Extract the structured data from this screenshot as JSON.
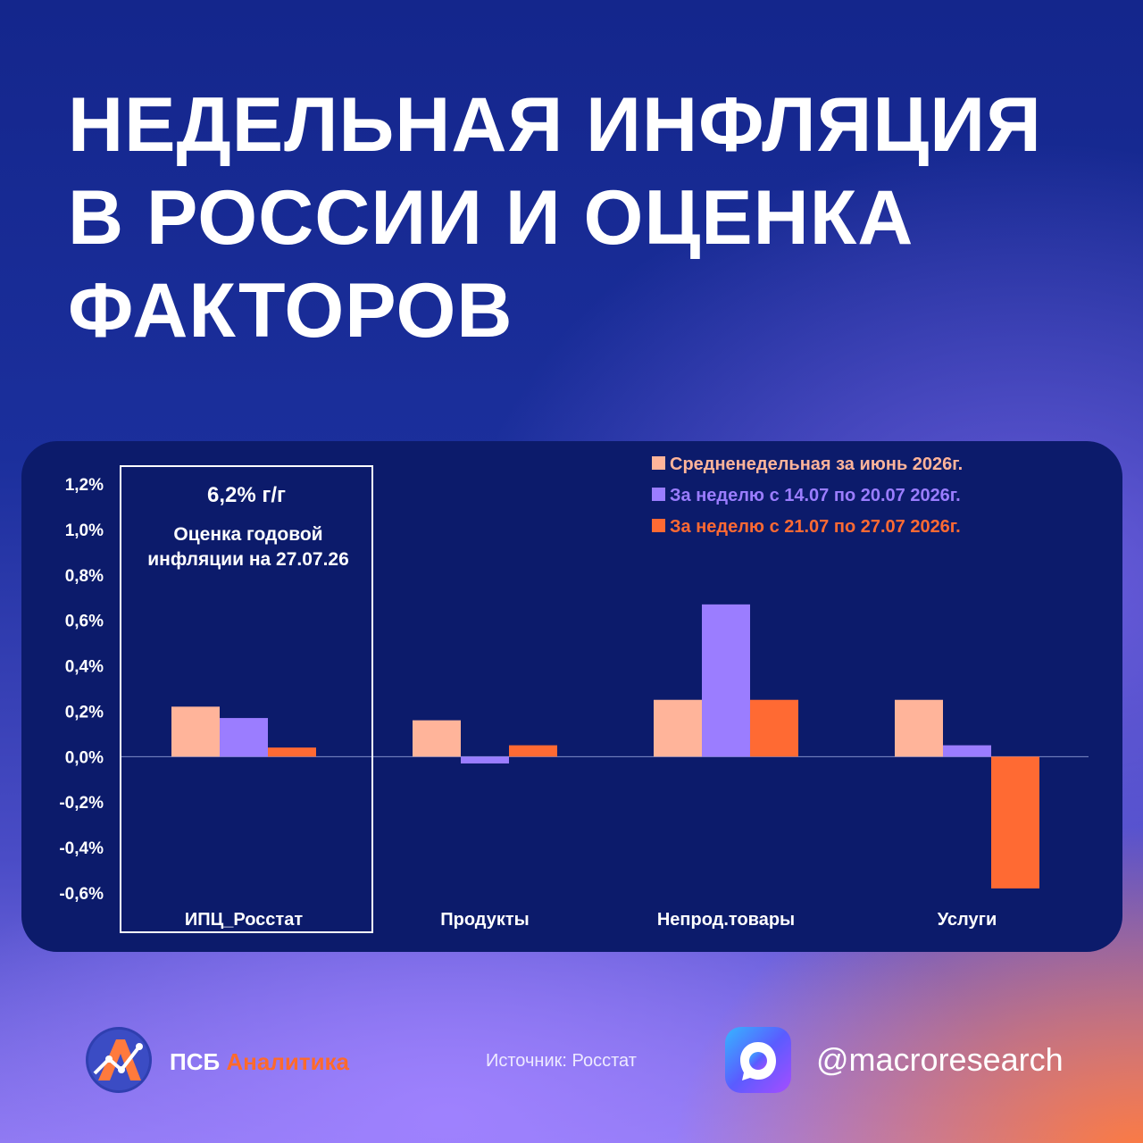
{
  "title": {
    "line1": "НЕДЕЛЬНАЯ ИНФЛЯЦИЯ",
    "line2": "В РОССИИ И ОЦЕНКА",
    "line3": "ФАКТОРОВ"
  },
  "annotation": {
    "value": "6,2% г/г",
    "text": "Оценка годовой инфляции на 27.07.26"
  },
  "footer": {
    "brand_part1": "ПСБ",
    "brand_part2": "Аналитика",
    "source": "Источник:  Росстат",
    "handle": "@macroresearch"
  },
  "colors": {
    "series1": "#ffb49a",
    "series2": "#9b7dff",
    "series3": "#ff6a33",
    "panel": "#0c1b6b"
  },
  "chart_data": {
    "type": "bar",
    "categories": [
      "ИПЦ_Росстат",
      "Продукты",
      "Непрод.товары",
      "Услуги"
    ],
    "series": [
      {
        "name": "Средненедельная за июнь 2026г.",
        "values": [
          0.22,
          0.16,
          0.25,
          0.25
        ]
      },
      {
        "name": "За неделю с 14.07 по 20.07 2026г.",
        "values": [
          0.17,
          -0.03,
          0.67,
          0.05
        ]
      },
      {
        "name": "За неделю с 21.07 по 27.07 2026г.",
        "values": [
          0.04,
          0.05,
          0.25,
          -0.58
        ]
      }
    ],
    "yticks": [
      "1,2%",
      "1,0%",
      "0,8%",
      "0,6%",
      "0,4%",
      "0,2%",
      "0,0%",
      "-0,2%",
      "-0,4%",
      "-0,6%"
    ],
    "ylim": [
      -0.6,
      1.2
    ],
    "legend_position": "top-right",
    "grid": false
  }
}
